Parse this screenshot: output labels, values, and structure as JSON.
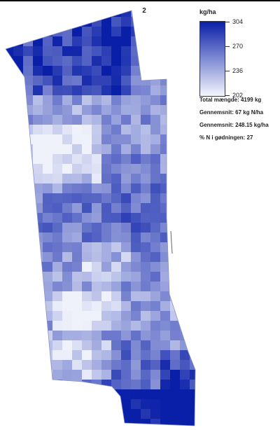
{
  "map_title": "2",
  "legend": {
    "unit": "kg/ha",
    "max": 304,
    "min": 202,
    "ticks": [
      "304",
      "270",
      "236",
      "202"
    ],
    "color_high": "#0a1fa8",
    "color_low": "#f4f6fd"
  },
  "stats": [
    "Total mængde: 4199 kg",
    "Gennemsnit: 67 kg N/ha",
    "Gennemsnit: 248.15 kg/ha",
    "% N i gødningen: 27"
  ]
}
